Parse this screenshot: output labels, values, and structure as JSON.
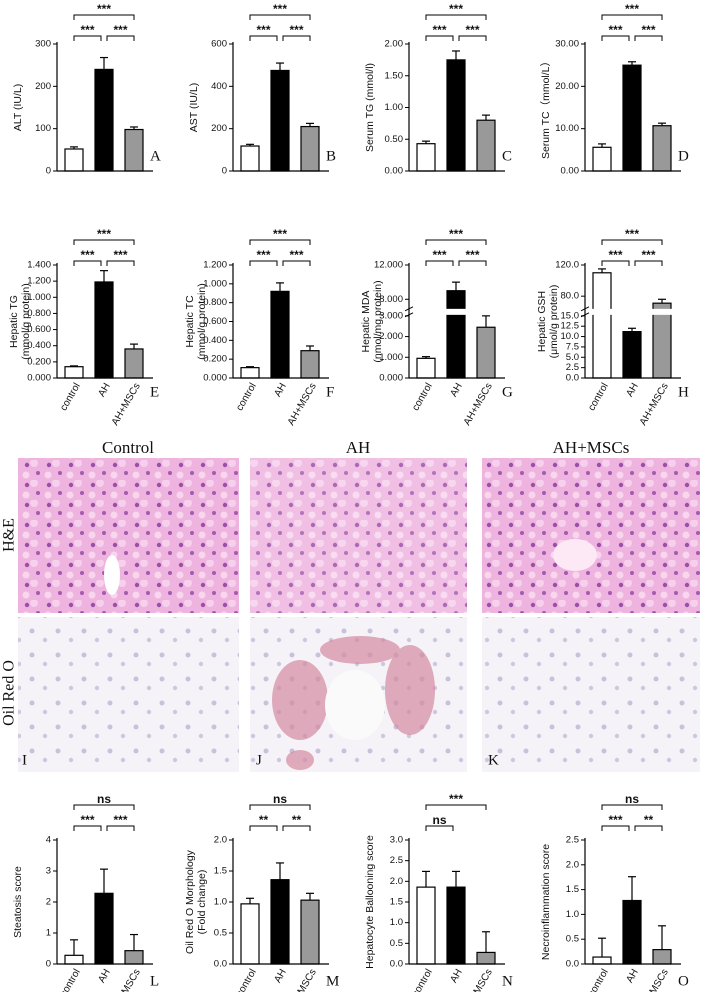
{
  "chart_data": [
    {
      "type": "bar",
      "ylabel": "ALT (IU/L)",
      "letter": "A",
      "values": [
        52,
        240,
        98
      ],
      "errors": [
        5,
        28,
        6
      ],
      "colors": [
        "#ffffff",
        "#000000",
        "#999999"
      ],
      "ylim": [
        0,
        300
      ],
      "yticks": [
        0,
        100,
        200,
        300
      ],
      "comparisons": [
        {
          "groups": [
            0,
            1
          ],
          "label": "***"
        },
        {
          "groups": [
            1,
            2
          ],
          "label": "***"
        },
        {
          "groups": [
            0,
            2
          ],
          "label": "***"
        }
      ]
    },
    {
      "type": "bar",
      "ylabel": "AST (IU/L)",
      "letter": "B",
      "values": [
        118,
        475,
        210
      ],
      "errors": [
        8,
        35,
        15
      ],
      "colors": [
        "#ffffff",
        "#000000",
        "#999999"
      ],
      "ylim": [
        0,
        600
      ],
      "yticks": [
        0,
        200,
        400,
        600
      ],
      "comparisons": [
        {
          "groups": [
            0,
            1
          ],
          "label": "***"
        },
        {
          "groups": [
            1,
            2
          ],
          "label": "***"
        },
        {
          "groups": [
            0,
            2
          ],
          "label": "***"
        }
      ]
    },
    {
      "type": "bar",
      "ylabel": "Serum TG (mmol/l)",
      "letter": "C",
      "values": [
        0.43,
        1.75,
        0.8
      ],
      "errors": [
        0.04,
        0.14,
        0.08
      ],
      "colors": [
        "#ffffff",
        "#000000",
        "#999999"
      ],
      "ylim": [
        0,
        2
      ],
      "yticks": [
        {
          "value": 0,
          "label": "0.00"
        },
        {
          "value": 0.5,
          "label": "0.50"
        },
        {
          "value": 1,
          "label": "1.00"
        },
        {
          "value": 1.5,
          "label": "1.50"
        },
        {
          "value": 2,
          "label": "2.00"
        }
      ],
      "comparisons": [
        {
          "groups": [
            0,
            1
          ],
          "label": "***"
        },
        {
          "groups": [
            1,
            2
          ],
          "label": "***"
        },
        {
          "groups": [
            0,
            2
          ],
          "label": "***"
        }
      ]
    },
    {
      "type": "bar",
      "ylabel": "Serum TC（mmol/L）",
      "letter": "D",
      "values": [
        5.6,
        25,
        10.7
      ],
      "errors": [
        0.8,
        0.8,
        0.6
      ],
      "colors": [
        "#ffffff",
        "#000000",
        "#999999"
      ],
      "ylim": [
        0,
        30
      ],
      "yticks": [
        {
          "value": 0,
          "label": "0.00"
        },
        {
          "value": 10,
          "label": "10.00"
        },
        {
          "value": 20,
          "label": "20.00"
        },
        {
          "value": 30,
          "label": "30.00"
        }
      ],
      "comparisons": [
        {
          "groups": [
            0,
            1
          ],
          "label": "***"
        },
        {
          "groups": [
            1,
            2
          ],
          "label": "***"
        },
        {
          "groups": [
            0,
            2
          ],
          "label": "***"
        }
      ]
    },
    {
      "type": "bar",
      "ylabel": [
        "Hepatic TG",
        "(mmol/g protein)"
      ],
      "letter": "E",
      "categories": [
        "control",
        "AH",
        "AH+MSCs"
      ],
      "values": [
        0.14,
        1.19,
        0.36
      ],
      "errors": [
        0.01,
        0.14,
        0.06
      ],
      "colors": [
        "#ffffff",
        "#000000",
        "#999999"
      ],
      "ylim": [
        0,
        1.4
      ],
      "yticks": [
        {
          "value": 0,
          "label": "0.000"
        },
        {
          "value": 0.2,
          "label": "0.200"
        },
        {
          "value": 0.4,
          "label": "0.400"
        },
        {
          "value": 0.6,
          "label": "0.600"
        },
        {
          "value": 0.8,
          "label": "0.800"
        },
        {
          "value": 1,
          "label": "1.000"
        },
        {
          "value": 1.2,
          "label": "1.200"
        },
        {
          "value": 1.4,
          "label": "1.400"
        }
      ],
      "comparisons": [
        {
          "groups": [
            0,
            1
          ],
          "label": "***"
        },
        {
          "groups": [
            1,
            2
          ],
          "label": "***"
        },
        {
          "groups": [
            0,
            2
          ],
          "label": "***"
        }
      ]
    },
    {
      "type": "bar",
      "ylabel": [
        "Hepatic TC",
        "(mmol/g protein)"
      ],
      "letter": "F",
      "categories": [
        "control",
        "AH",
        "AH+MSCs"
      ],
      "values": [
        0.11,
        0.92,
        0.29
      ],
      "errors": [
        0.01,
        0.09,
        0.05
      ],
      "colors": [
        "#ffffff",
        "#000000",
        "#999999"
      ],
      "ylim": [
        0,
        1.2
      ],
      "yticks": [
        {
          "value": 0,
          "label": "0.000"
        },
        {
          "value": 0.2,
          "label": "0.200"
        },
        {
          "value": 0.4,
          "label": "0.400"
        },
        {
          "value": 0.6,
          "label": "0.600"
        },
        {
          "value": 0.8,
          "label": "0.800"
        },
        {
          "value": 1,
          "label": "1.000"
        },
        {
          "value": 1.2,
          "label": "1.200"
        }
      ],
      "comparisons": [
        {
          "groups": [
            0,
            1
          ],
          "label": "***"
        },
        {
          "groups": [
            1,
            2
          ],
          "label": "***"
        },
        {
          "groups": [
            0,
            2
          ],
          "label": "***"
        }
      ]
    },
    {
      "type": "bar",
      "ylabel": [
        "Hepatic MDA",
        "(nmol/mg protein)"
      ],
      "letter": "G",
      "categories": [
        "control",
        "AH",
        "AH+MSCs"
      ],
      "values": [
        0.95,
        9,
        2.45
      ],
      "errors": [
        0.08,
        1,
        0.55
      ],
      "colors": [
        "#ffffff",
        "#000000",
        "#999999"
      ],
      "ylim": [
        0,
        12
      ],
      "axis_break": [
        3,
        7
      ],
      "yticks": [
        {
          "value": 0,
          "label": "0.000"
        },
        {
          "value": 1,
          "label": "1.000"
        },
        {
          "value": 2,
          "label": "2.000"
        },
        {
          "value": 3,
          "label": "3.000"
        },
        {
          "value": 8,
          "label": "8.000"
        },
        {
          "value": 12,
          "label": "12.000"
        }
      ],
      "comparisons": [
        {
          "groups": [
            0,
            1
          ],
          "label": "***"
        },
        {
          "groups": [
            1,
            2
          ],
          "label": "***"
        },
        {
          "groups": [
            0,
            2
          ],
          "label": "***"
        }
      ]
    },
    {
      "type": "bar",
      "ylabel": [
        "Hepatic GSH",
        "(μmol/g protein)"
      ],
      "letter": "H",
      "categories": [
        "control",
        "AH",
        "AH+MSCs"
      ],
      "values": [
        110,
        11.2,
        71
      ],
      "errors": [
        5,
        0.8,
        5
      ],
      "colors": [
        "#ffffff",
        "#000000",
        "#999999"
      ],
      "ylim": [
        0,
        120
      ],
      "axis_break": [
        15,
        65
      ],
      "yticks": [
        {
          "value": 0,
          "label": "0.0"
        },
        {
          "value": 2.5,
          "label": "2.5"
        },
        {
          "value": 5,
          "label": "5.0"
        },
        {
          "value": 7.5,
          "label": "7.5"
        },
        {
          "value": 10,
          "label": "10.0"
        },
        {
          "value": 12.5,
          "label": "12.5"
        },
        {
          "value": 15,
          "label": "15.0"
        },
        {
          "value": 80,
          "label": "80.0"
        },
        {
          "value": 120,
          "label": "120.0"
        }
      ],
      "comparisons": [
        {
          "groups": [
            0,
            1
          ],
          "label": "***"
        },
        {
          "groups": [
            1,
            2
          ],
          "label": "***"
        },
        {
          "groups": [
            0,
            2
          ],
          "label": "***"
        }
      ]
    },
    {
      "type": "bar",
      "ylabel": "Steatosis score",
      "letter": "L",
      "categories": [
        "control",
        "AH",
        "AH+MSCs"
      ],
      "values": [
        0.28,
        2.28,
        0.43
      ],
      "errors": [
        0.5,
        0.78,
        0.52
      ],
      "colors": [
        "#ffffff",
        "#000000",
        "#999999"
      ],
      "ylim": [
        0,
        4
      ],
      "yticks": [
        0,
        1,
        2,
        3,
        4
      ],
      "comparisons": [
        {
          "groups": [
            0,
            1
          ],
          "label": "***"
        },
        {
          "groups": [
            1,
            2
          ],
          "label": "***"
        },
        {
          "groups": [
            0,
            2
          ],
          "label": "ns"
        }
      ]
    },
    {
      "type": "bar",
      "ylabel": [
        "Oil Red O Morphology",
        "(Fold change)"
      ],
      "letter": "M",
      "categories": [
        "control",
        "AH",
        "AH+MSCs"
      ],
      "values": [
        0.97,
        1.36,
        1.03
      ],
      "errors": [
        0.09,
        0.27,
        0.11
      ],
      "colors": [
        "#ffffff",
        "#000000",
        "#999999"
      ],
      "ylim": [
        0,
        2
      ],
      "yticks": [
        {
          "value": 0,
          "label": "0.0"
        },
        {
          "value": 0.5,
          "label": "0.5"
        },
        {
          "value": 1,
          "label": "1.0"
        },
        {
          "value": 1.5,
          "label": "1.5"
        },
        {
          "value": 2,
          "label": "2.0"
        }
      ],
      "comparisons": [
        {
          "groups": [
            0,
            1
          ],
          "label": "**"
        },
        {
          "groups": [
            1,
            2
          ],
          "label": "**"
        },
        {
          "groups": [
            0,
            2
          ],
          "label": "ns"
        }
      ]
    },
    {
      "type": "bar",
      "ylabel": "Hepatocyte Ballooning score",
      "letter": "N",
      "categories": [
        "control",
        "AH",
        "AH+MSCs"
      ],
      "values": [
        1.86,
        1.86,
        0.28
      ],
      "errors": [
        0.38,
        0.38,
        0.5
      ],
      "colors": [
        "#ffffff",
        "#000000",
        "#999999"
      ],
      "ylim": [
        0,
        3
      ],
      "yticks": [
        {
          "value": 0,
          "label": "0.0"
        },
        {
          "value": 0.5,
          "label": "0.5"
        },
        {
          "value": 1,
          "label": "1.0"
        },
        {
          "value": 1.5,
          "label": "1.5"
        },
        {
          "value": 2,
          "label": "2.0"
        },
        {
          "value": 2.5,
          "label": "2.5"
        },
        {
          "value": 3,
          "label": "3.0"
        }
      ],
      "comparisons": [
        {
          "groups": [
            0,
            1
          ],
          "label": "ns"
        },
        {
          "groups": [
            0,
            2
          ],
          "label": "***"
        }
      ]
    },
    {
      "type": "bar",
      "ylabel": "Necroinflammation score",
      "letter": "O",
      "categories": [
        "control",
        "AH",
        "AH+MSCs"
      ],
      "values": [
        0.14,
        1.28,
        0.29
      ],
      "errors": [
        0.38,
        0.48,
        0.48
      ],
      "colors": [
        "#ffffff",
        "#000000",
        "#999999"
      ],
      "ylim": [
        0,
        2.5
      ],
      "yticks": [
        {
          "value": 0,
          "label": "0.0"
        },
        {
          "value": 0.5,
          "label": "0.5"
        },
        {
          "value": 1,
          "label": "1.0"
        },
        {
          "value": 1.5,
          "label": "1.5"
        },
        {
          "value": 2,
          "label": "2.0"
        },
        {
          "value": 2.5,
          "label": "2.5"
        }
      ],
      "comparisons": [
        {
          "groups": [
            0,
            1
          ],
          "label": "***"
        },
        {
          "groups": [
            1,
            2
          ],
          "label": "**"
        },
        {
          "groups": [
            0,
            2
          ],
          "label": "ns"
        }
      ]
    }
  ],
  "micrographs": {
    "columns": [
      "Control",
      "AH",
      "AH+MSCs"
    ],
    "rows": [
      "H&E",
      "Oil Red O"
    ],
    "letters": [
      "I",
      "J",
      "K"
    ]
  }
}
